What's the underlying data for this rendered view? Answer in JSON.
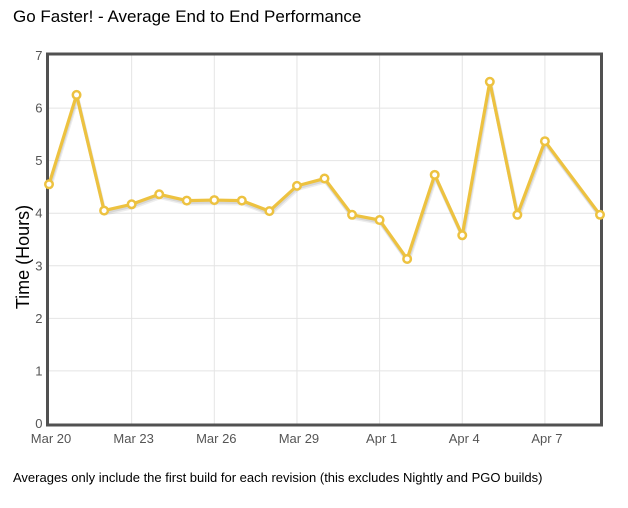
{
  "page": {
    "title": "Go Faster! - Average End to End Performance",
    "footnote": "Averages only include the first build for each revision (this excludes Nightly and PGO builds)"
  },
  "chart_data": {
    "type": "line",
    "title": "Go Faster! - Average End to End Performance",
    "xlabel": "",
    "ylabel": "Time (Hours)",
    "ylim": [
      0,
      7
    ],
    "yticks": [
      0,
      1,
      2,
      3,
      4,
      5,
      6,
      7
    ],
    "x_axis_unit": "days since Mar 20",
    "xlim_days": [
      0,
      20
    ],
    "xticks": [
      {
        "day": 0,
        "label": "Mar 20"
      },
      {
        "day": 3,
        "label": "Mar 23"
      },
      {
        "day": 6,
        "label": "Mar 26"
      },
      {
        "day": 9,
        "label": "Mar 29"
      },
      {
        "day": 12,
        "label": "Apr 1"
      },
      {
        "day": 15,
        "label": "Apr 4"
      },
      {
        "day": 18,
        "label": "Apr 7"
      }
    ],
    "grid": true,
    "legend_position": "none",
    "series": [
      {
        "name": "Average End to End Time (Hours)",
        "color": "#edc240",
        "marker": "open-circle",
        "points": [
          {
            "day": 0,
            "label": "Mar 20",
            "value": 4.55
          },
          {
            "day": 1,
            "label": "Mar 21",
            "value": 6.25
          },
          {
            "day": 2,
            "label": "Mar 22",
            "value": 4.05
          },
          {
            "day": 3,
            "label": "Mar 23",
            "value": 4.17
          },
          {
            "day": 4,
            "label": "Mar 24",
            "value": 4.36
          },
          {
            "day": 5,
            "label": "Mar 25",
            "value": 4.24
          },
          {
            "day": 6,
            "label": "Mar 26",
            "value": 4.25
          },
          {
            "day": 7,
            "label": "Mar 27",
            "value": 4.24
          },
          {
            "day": 8,
            "label": "Mar 28",
            "value": 4.04
          },
          {
            "day": 9,
            "label": "Mar 29",
            "value": 4.52
          },
          {
            "day": 10,
            "label": "Mar 30",
            "value": 4.66
          },
          {
            "day": 11,
            "label": "Mar 31",
            "value": 3.97
          },
          {
            "day": 12,
            "label": "Apr 1",
            "value": 3.87
          },
          {
            "day": 13,
            "label": "Apr 2",
            "value": 3.13
          },
          {
            "day": 14,
            "label": "Apr 3",
            "value": 4.73
          },
          {
            "day": 15,
            "label": "Apr 4",
            "value": 3.58
          },
          {
            "day": 16,
            "label": "Apr 5",
            "value": 6.5
          },
          {
            "day": 17,
            "label": "Apr 6",
            "value": 3.97
          },
          {
            "day": 18,
            "label": "Apr 7",
            "value": 5.37
          },
          {
            "day": 20,
            "label": "Apr 9",
            "value": 3.97
          }
        ]
      }
    ],
    "colors": {
      "line": "#edc240",
      "marker_fill": "#ffffff",
      "plot_border": "#515151",
      "gridline": "#e4e4e4",
      "tick_label": "#555555",
      "text": "#000000",
      "background": "#ffffff"
    }
  }
}
